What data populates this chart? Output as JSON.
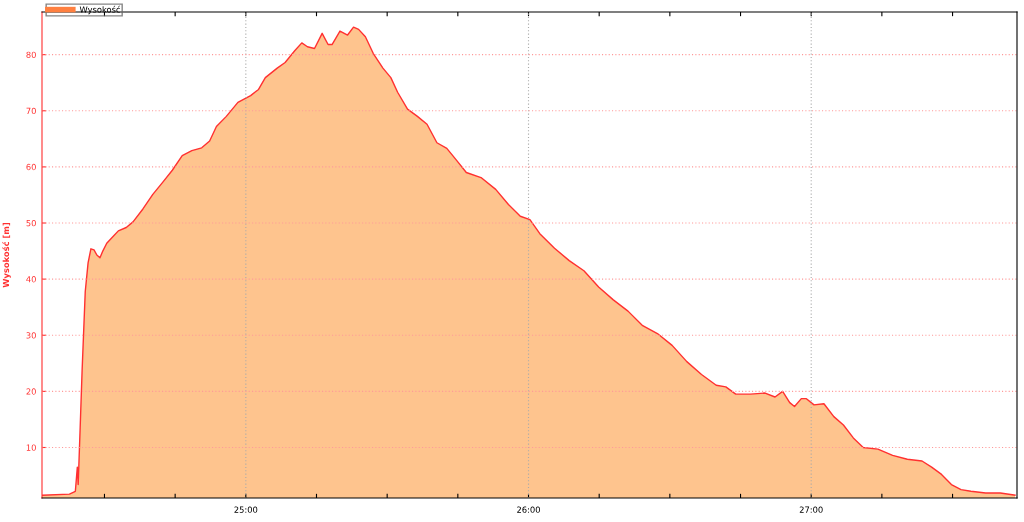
{
  "chart_data": {
    "type": "area",
    "ylabel": "Wysokość [m]",
    "x": [
      24.279,
      24.376,
      24.397,
      24.404,
      24.407,
      24.414,
      24.421,
      24.432,
      24.442,
      24.452,
      24.463,
      24.473,
      24.484,
      24.494,
      24.508,
      24.532,
      24.549,
      24.577,
      24.601,
      24.636,
      24.671,
      24.705,
      24.74,
      24.775,
      24.809,
      24.844,
      24.872,
      24.896,
      24.931,
      24.972,
      25.017,
      25.045,
      25.069,
      25.111,
      25.139,
      25.173,
      25.198,
      25.218,
      25.243,
      25.27,
      25.291,
      25.305,
      25.333,
      25.36,
      25.381,
      25.399,
      25.423,
      25.451,
      25.485,
      25.513,
      25.537,
      25.572,
      25.607,
      25.641,
      25.676,
      25.711,
      25.745,
      25.78,
      25.832,
      25.884,
      25.929,
      25.971,
      26.005,
      26.04,
      26.092,
      26.144,
      26.196,
      26.248,
      26.3,
      26.352,
      26.404,
      26.456,
      26.508,
      26.56,
      26.612,
      26.664,
      26.698,
      26.733,
      26.785,
      26.837,
      26.872,
      26.899,
      26.924,
      26.941,
      26.965,
      26.983,
      27.01,
      27.045,
      27.08,
      27.114,
      27.149,
      27.184,
      27.236,
      27.288,
      27.34,
      27.392,
      27.426,
      27.461,
      27.496,
      27.53,
      27.565,
      27.617,
      27.669,
      27.721
    ],
    "series": [
      {
        "name": "Wysokość",
        "color": "#fec48e",
        "values": [
          1.5,
          1.7,
          2.2,
          6.5,
          3.4,
          13.5,
          23.9,
          37.8,
          42.9,
          45.4,
          45.2,
          44.3,
          43.8,
          45.0,
          46.4,
          47.7,
          48.6,
          49.2,
          50.2,
          52.5,
          55.1,
          57.2,
          59.4,
          62.0,
          62.9,
          63.4,
          64.6,
          67.2,
          69.0,
          71.5,
          72.7,
          73.8,
          75.9,
          77.6,
          78.6,
          80.7,
          82.1,
          81.4,
          81.1,
          83.8,
          81.8,
          81.8,
          84.2,
          83.5,
          84.9,
          84.5,
          83.2,
          80.2,
          77.6,
          75.9,
          73.3,
          70.3,
          69.0,
          67.6,
          64.3,
          63.3,
          61.2,
          59.0,
          58.1,
          56.0,
          53.3,
          51.2,
          50.6,
          48.1,
          45.5,
          43.3,
          41.5,
          38.6,
          36.3,
          34.3,
          31.7,
          30.3,
          28.2,
          25.3,
          23.0,
          21.1,
          20.8,
          19.5,
          19.5,
          19.7,
          19.0,
          20.0,
          18.0,
          17.3,
          18.7,
          18.7,
          17.6,
          17.8,
          15.5,
          14.0,
          11.7,
          10.0,
          9.7,
          8.6,
          7.9,
          7.6,
          6.5,
          5.2,
          3.4,
          2.5,
          2.2,
          1.9,
          1.9,
          1.5
        ]
      }
    ],
    "xlim": [
      24.279,
      27.728
    ],
    "xticks": [
      {
        "value": 24.5,
        "label": null
      },
      {
        "value": 24.75,
        "label": null
      },
      {
        "value": 25,
        "label": "25:00"
      },
      {
        "value": 25.25,
        "label": null
      },
      {
        "value": 25.5,
        "label": null
      },
      {
        "value": 25.75,
        "label": null
      },
      {
        "value": 26,
        "label": "26:00"
      },
      {
        "value": 26.25,
        "label": null
      },
      {
        "value": 26.5,
        "label": null
      },
      {
        "value": 26.75,
        "label": null
      },
      {
        "value": 27,
        "label": "27:00"
      },
      {
        "value": 27.25,
        "label": null
      },
      {
        "value": 27.5,
        "label": null
      }
    ],
    "ylim": [
      1,
      87.6
    ],
    "yticks": [
      10,
      20,
      30,
      40,
      50,
      60,
      70,
      80
    ],
    "grid": true,
    "legend": "top left"
  }
}
